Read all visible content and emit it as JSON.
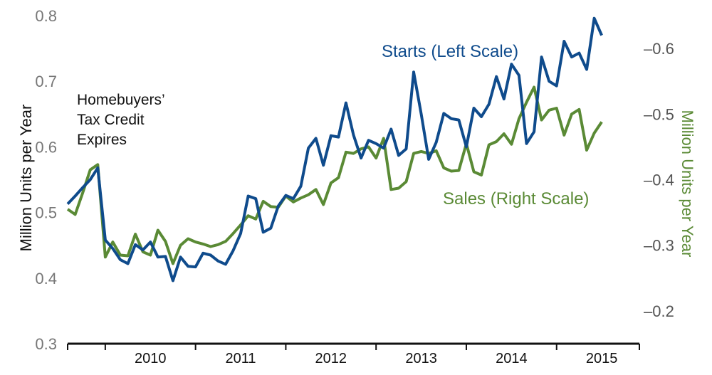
{
  "chart_data": {
    "type": "line",
    "xlabel": "",
    "ylabel_left": "Million Units per Year",
    "ylabel_right": "Million Units per Year",
    "ylim_left": [
      0.3,
      0.8
    ],
    "ylim_right": [
      0.15,
      0.65
    ],
    "xlim": [
      2009.583,
      2015.917
    ],
    "x_ticks": [
      "2010",
      "2011",
      "2012",
      "2013",
      "2014",
      "2015"
    ],
    "y_ticks_left": [
      "0.3",
      "0.4",
      "0.5",
      "0.6",
      "0.7",
      "0.8"
    ],
    "y_ticks_right": [
      "–0.2",
      "–0.3",
      "–0.4",
      "–0.5",
      "–0.6"
    ],
    "y_tick_values_left": [
      0.3,
      0.4,
      0.5,
      0.6,
      0.7,
      0.8
    ],
    "y_tick_values_right": [
      0.2,
      0.3,
      0.4,
      0.5,
      0.6
    ],
    "grid": false,
    "annotation": [
      "Homebuyers’",
      "Tax Credit",
      "Expires"
    ],
    "series": [
      {
        "name": "Starts (Left Scale)",
        "axis": "left",
        "color": "#0f4b8c",
        "x_start": "2009-08",
        "values": [
          0.513,
          0.525,
          0.538,
          0.55,
          0.568,
          0.458,
          0.445,
          0.428,
          0.422,
          0.451,
          0.443,
          0.455,
          0.432,
          0.433,
          0.396,
          0.432,
          0.418,
          0.417,
          0.438,
          0.435,
          0.426,
          0.421,
          0.442,
          0.468,
          0.525,
          0.521,
          0.47,
          0.476,
          0.51,
          0.526,
          0.521,
          0.54,
          0.598,
          0.613,
          0.572,
          0.617,
          0.615,
          0.667,
          0.618,
          0.583,
          0.61,
          0.605,
          0.598,
          0.627,
          0.587,
          0.597,
          0.714,
          0.65,
          0.581,
          0.607,
          0.651,
          0.643,
          0.641,
          0.6,
          0.659,
          0.646,
          0.665,
          0.707,
          0.673,
          0.726,
          0.709,
          0.605,
          0.623,
          0.737,
          0.7,
          0.693,
          0.761,
          0.737,
          0.743,
          0.718,
          0.796,
          0.77
        ]
      },
      {
        "name": "Sales (Right Scale)",
        "axis": "right",
        "color": "#5a8a35",
        "x_start": "2009-08",
        "values": [
          0.355,
          0.347,
          0.38,
          0.415,
          0.423,
          0.282,
          0.305,
          0.285,
          0.284,
          0.317,
          0.29,
          0.285,
          0.323,
          0.306,
          0.272,
          0.3,
          0.31,
          0.305,
          0.302,
          0.298,
          0.301,
          0.306,
          0.318,
          0.331,
          0.345,
          0.34,
          0.367,
          0.359,
          0.358,
          0.375,
          0.366,
          0.372,
          0.377,
          0.385,
          0.362,
          0.395,
          0.403,
          0.442,
          0.44,
          0.447,
          0.45,
          0.433,
          0.463,
          0.385,
          0.387,
          0.397,
          0.44,
          0.443,
          0.44,
          0.444,
          0.418,
          0.413,
          0.414,
          0.455,
          0.412,
          0.407,
          0.453,
          0.458,
          0.47,
          0.454,
          0.493,
          0.518,
          0.541,
          0.491,
          0.506,
          0.509,
          0.468,
          0.5,
          0.507,
          0.445,
          0.471,
          0.488
        ]
      }
    ]
  }
}
